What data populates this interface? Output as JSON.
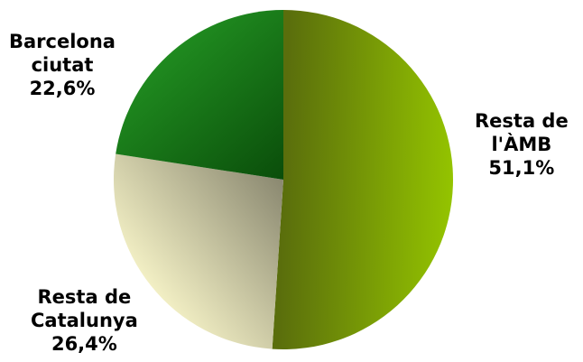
{
  "chart_data": {
    "type": "pie",
    "start_angle_deg": 0,
    "direction": "clockwise",
    "slices": [
      {
        "label_lines": [
          "Resta de",
          "l'ÀMB"
        ],
        "value_text": "51,1%",
        "value": 51.1,
        "color_light": "#94c400",
        "color_dark": "#5a6e0c"
      },
      {
        "label_lines": [
          "Resta de",
          "Catalunya"
        ],
        "value_text": "26,4%",
        "value": 26.4,
        "color_light": "#f2efc4",
        "color_dark": "#8a8870"
      },
      {
        "label_lines": [
          "Barcelona",
          "ciutat"
        ],
        "value_text": "22,6%",
        "value": 22.6,
        "color_light": "#1f8a1f",
        "color_dark": "#0a4d0a"
      }
    ]
  }
}
